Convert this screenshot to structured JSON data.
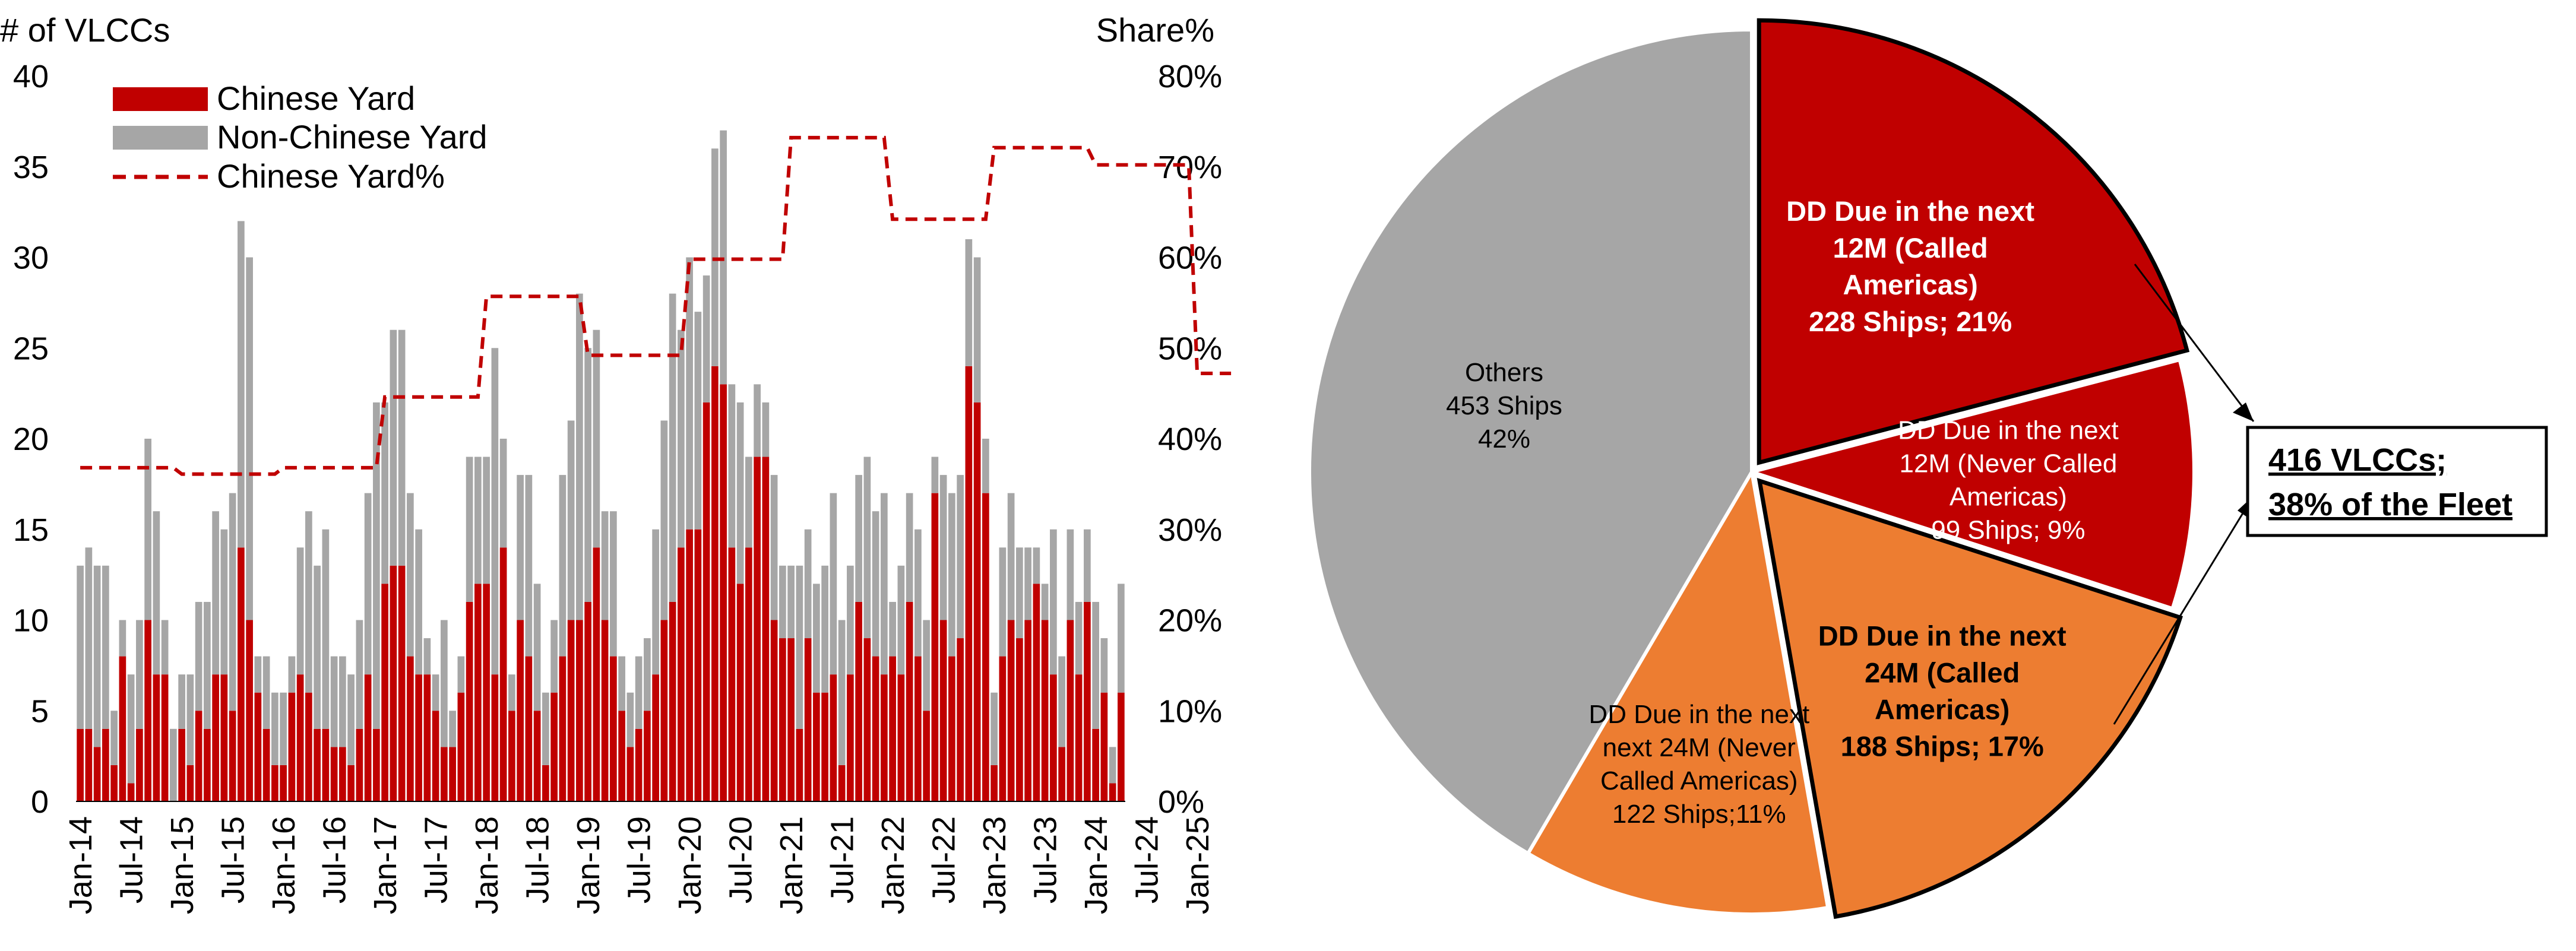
{
  "chart_data": [
    {
      "type": "bar",
      "stacked": true,
      "title": "",
      "ylabel_left": "# of VLCCs",
      "ylabel_right": "Share%",
      "ylim_left": [
        0,
        40
      ],
      "ylim_right": [
        0,
        80
      ],
      "yticks_left": [
        "0",
        "5",
        "10",
        "15",
        "20",
        "25",
        "30",
        "35",
        "40"
      ],
      "yticks_right": [
        "0%",
        "10%",
        "20%",
        "30%",
        "40%",
        "50%",
        "60%",
        "70%",
        "80%"
      ],
      "xtick_labels": [
        "Jan-14",
        "Jul-14",
        "Jan-15",
        "Jul-15",
        "Jan-16",
        "Jul-16",
        "Jan-17",
        "Jul-17",
        "Jan-18",
        "Jul-18",
        "Jan-19",
        "Jul-19",
        "Jan-20",
        "Jul-20",
        "Jan-21",
        "Jul-21",
        "Jan-22",
        "Jul-22",
        "Jan-23",
        "Jul-23",
        "Jan-24",
        "Jul-24",
        "Jan-25"
      ],
      "x_start": "2014-01",
      "x_end": "2025-05",
      "legend_position": "top-left",
      "grid": false,
      "series": [
        {
          "name": "Chinese Yard",
          "kind": "bar",
          "color": "#C00000",
          "values": [
            4,
            4,
            3,
            4,
            2,
            8,
            1,
            4,
            10,
            7,
            7,
            0,
            4,
            2,
            5,
            4,
            7,
            7,
            5,
            14,
            10,
            6,
            4,
            2,
            2,
            6,
            7,
            6,
            4,
            4,
            3,
            3,
            2,
            4,
            7,
            4,
            12,
            13,
            13,
            8,
            7,
            7,
            5,
            3,
            3,
            6,
            11,
            12,
            12,
            7,
            14,
            5,
            10,
            8,
            5,
            2,
            6,
            8,
            10,
            10,
            11,
            14,
            10,
            8,
            5,
            3,
            4,
            5,
            7,
            10,
            11,
            14,
            15,
            15,
            22,
            24,
            23,
            14,
            12,
            14,
            19,
            19,
            10,
            9,
            9,
            4,
            9,
            6,
            6,
            7,
            2,
            7,
            11,
            9,
            8,
            7,
            8,
            7,
            11,
            8,
            5,
            17,
            10,
            8,
            9,
            24,
            22,
            17,
            2,
            8,
            10,
            9,
            10,
            12,
            10,
            7,
            3,
            10,
            7,
            11,
            4,
            6,
            1,
            6
          ]
        },
        {
          "name": "Non-Chinese Yard",
          "kind": "bar",
          "color": "#A6A6A6",
          "values": [
            9,
            10,
            10,
            9,
            3,
            2,
            6,
            6,
            10,
            9,
            3,
            4,
            3,
            5,
            6,
            7,
            9,
            8,
            12,
            18,
            20,
            2,
            4,
            4,
            4,
            2,
            7,
            10,
            9,
            11,
            5,
            5,
            5,
            6,
            10,
            18,
            10,
            13,
            13,
            9,
            8,
            2,
            2,
            7,
            2,
            2,
            8,
            7,
            7,
            18,
            6,
            2,
            8,
            10,
            7,
            4,
            4,
            10,
            11,
            18,
            14,
            12,
            6,
            8,
            3,
            3,
            4,
            4,
            8,
            11,
            17,
            12,
            15,
            12,
            7,
            12,
            14,
            9,
            10,
            5,
            4,
            3,
            8,
            4,
            4,
            9,
            6,
            6,
            7,
            10,
            8,
            6,
            7,
            10,
            8,
            10,
            3,
            6,
            6,
            7,
            5,
            2,
            8,
            9,
            9,
            7,
            8,
            3,
            4,
            6,
            7,
            5,
            4,
            2,
            2,
            8,
            5,
            5,
            4,
            4,
            7,
            3,
            2,
            6
          ]
        },
        {
          "name": "Chinese Yard%",
          "kind": "line",
          "axis": "right",
          "color": "#C00000",
          "dashed": true,
          "steps": [
            {
              "from": "2014-01",
              "to": "2014-12",
              "value": 36.8
            },
            {
              "from": "2015-01",
              "to": "2015-12",
              "value": 36.1
            },
            {
              "from": "2016-01",
              "to": "2016-12",
              "value": 36.8
            },
            {
              "from": "2017-01",
              "to": "2017-12",
              "value": 44.6
            },
            {
              "from": "2018-01",
              "to": "2018-12",
              "value": 55.7
            },
            {
              "from": "2019-01",
              "to": "2019-12",
              "value": 49.2
            },
            {
              "from": "2020-01",
              "to": "2020-12",
              "value": 59.8
            },
            {
              "from": "2021-01",
              "to": "2021-12",
              "value": 73.2
            },
            {
              "from": "2022-01",
              "to": "2022-12",
              "value": 64.2
            },
            {
              "from": "2023-01",
              "to": "2023-12",
              "value": 72.1
            },
            {
              "from": "2024-01",
              "to": "2024-12",
              "value": 70.2
            },
            {
              "from": "2025-01",
              "to": "2025-05",
              "value": 47.2
            }
          ]
        }
      ]
    },
    {
      "type": "pie",
      "title": "",
      "slices": [
        {
          "label": "DD Due in the next 12M (Called Americas)",
          "ships": 228,
          "share": 21,
          "color": "#C00000",
          "exploded": true,
          "outlined": true,
          "text_color": "#ffffff",
          "bold": true,
          "lines": [
            "DD Due in the next",
            "12M (Called",
            "Americas)",
            "228 Ships; 21%"
          ]
        },
        {
          "label": "DD Due in the next 12M (Never Called Americas)",
          "ships": 99,
          "share": 9,
          "color": "#C00000",
          "exploded": false,
          "outlined": false,
          "text_color": "#ffffff",
          "bold": false,
          "lines": [
            "DD Due in the next",
            "12M (Never Called",
            "Americas)",
            "99 Ships; 9%"
          ]
        },
        {
          "label": "DD Due in the next 24M (Called Americas)",
          "ships": 188,
          "share": 17,
          "color": "#ED7D31",
          "exploded": true,
          "outlined": true,
          "text_color": "#000000",
          "bold": true,
          "lines": [
            "DD Due in the next",
            "24M (Called",
            "Americas)",
            "188 Ships; 17%"
          ]
        },
        {
          "label": "DD Due in the next 24M (Never Called Americas)",
          "ships": 122,
          "share": 11,
          "color": "#ED7D31",
          "exploded": false,
          "outlined": false,
          "text_color": "#000000",
          "bold": false,
          "lines": [
            "DD Due in the next",
            "next 24M (Never",
            "Called Americas)",
            "122 Ships;11%"
          ]
        },
        {
          "label": "Others",
          "ships": 453,
          "share": 42,
          "color": "#A6A6A6",
          "exploded": false,
          "outlined": false,
          "text_color": "#000000",
          "bold": false,
          "lines": [
            "Others",
            "453 Ships",
            "42%"
          ]
        }
      ],
      "callout": {
        "lines": [
          "416 VLCCs;",
          "38% of the Fleet"
        ]
      }
    }
  ]
}
